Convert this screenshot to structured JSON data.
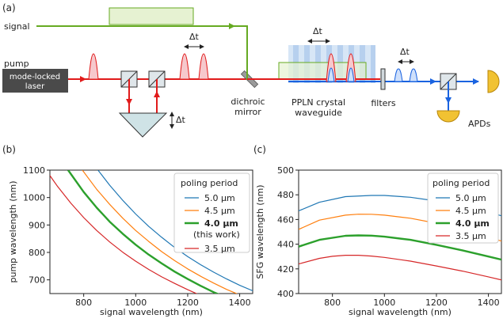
{
  "panel_a": {
    "label": "(a)",
    "signal_label": "signal",
    "pump_label": "pump",
    "laser_line1": "mode-locked",
    "laser_line2": "laser",
    "delay_symbol": "Δt",
    "dichroic_line1": "dichroic",
    "dichroic_line2": "mirror",
    "ppln_line1": "PPLN crystal",
    "ppln_line2": "waveguide",
    "filters_label": "filters",
    "apds_label": "APDs",
    "colors": {
      "signal": "#66aa22",
      "signal_fill": "#e6f2d2",
      "pump": "#e11b1b",
      "pump_fill": "#f6c8cc",
      "sfg": "#1a63e0",
      "sfg_fill": "#cfe0fb",
      "laser_box": "#4a4a4a",
      "apd": "#f1c232"
    }
  },
  "chart_data": [
    {
      "type": "line",
      "panel": "(b)",
      "xlabel": "signal wavelength (nm)",
      "ylabel": "pump wavelength (nm)",
      "xlim": [
        670,
        1450
      ],
      "ylim": [
        650,
        1100
      ],
      "xticks": [
        800,
        1000,
        1200,
        1400
      ],
      "yticks": [
        700,
        800,
        900,
        1000,
        1100
      ],
      "legend_title": "poling period",
      "legend_position": "top-right",
      "grid": false,
      "series": [
        {
          "name": "5.0 μm",
          "color": "#1f77b4",
          "bold": false,
          "x": [
            855,
            900,
            950,
            1000,
            1050,
            1100,
            1150,
            1200,
            1250,
            1300,
            1350,
            1400,
            1450
          ],
          "y": [
            1100,
            1045,
            990,
            940,
            895,
            855,
            818,
            785,
            755,
            728,
            703,
            680,
            660
          ]
        },
        {
          "name": "4.5 μm",
          "color": "#ff7f0e",
          "bold": false,
          "x": [
            795,
            850,
            900,
            950,
            1000,
            1050,
            1100,
            1150,
            1200,
            1250,
            1300,
            1350,
            1400,
            1450
          ],
          "y": [
            1100,
            1030,
            975,
            925,
            880,
            840,
            803,
            770,
            740,
            713,
            688,
            665,
            645,
            627
          ]
        },
        {
          "name": "4.0 μm",
          "note": "(this work)",
          "color": "#2ca02c",
          "bold": true,
          "x": [
            740,
            800,
            850,
            900,
            950,
            1000,
            1050,
            1100,
            1150,
            1200,
            1250,
            1300,
            1350
          ],
          "y": [
            1100,
            1020,
            963,
            912,
            868,
            828,
            792,
            760,
            730,
            703,
            678,
            655,
            635
          ]
        },
        {
          "name": "3.5 μm",
          "color": "#d62728",
          "bold": false,
          "x": [
            670,
            700,
            750,
            800,
            850,
            900,
            950,
            1000,
            1050,
            1100,
            1150,
            1200,
            1250
          ],
          "y": [
            1080,
            1040,
            980,
            927,
            880,
            838,
            801,
            768,
            738,
            711,
            687,
            664,
            643
          ]
        }
      ]
    },
    {
      "type": "line",
      "panel": "(c)",
      "xlabel": "signal wavelength (nm)",
      "ylabel": "SFG wavelength (nm)",
      "xlim": [
        670,
        1450
      ],
      "ylim": [
        400,
        500
      ],
      "xticks": [
        800,
        1000,
        1200,
        1400
      ],
      "yticks": [
        400,
        420,
        440,
        460,
        480,
        500
      ],
      "legend_title": "poling period",
      "legend_position": "top-right",
      "grid": false,
      "series": [
        {
          "name": "5.0 μm",
          "color": "#1f77b4",
          "bold": false,
          "x": [
            670,
            750,
            850,
            950,
            1000,
            1100,
            1200,
            1300,
            1400,
            1450
          ],
          "y": [
            467,
            474,
            478.5,
            479.5,
            479.5,
            478,
            475,
            471,
            466,
            463
          ]
        },
        {
          "name": "4.5 μm",
          "color": "#ff7f0e",
          "bold": false,
          "x": [
            670,
            750,
            850,
            900,
            950,
            1000,
            1100,
            1200,
            1300,
            1400,
            1450
          ],
          "y": [
            452,
            459.5,
            463.5,
            464.3,
            464.2,
            463.5,
            461,
            457,
            452,
            446,
            442.5
          ]
        },
        {
          "name": "4.0 μm",
          "color": "#2ca02c",
          "bold": true,
          "x": [
            670,
            750,
            850,
            900,
            950,
            1000,
            1100,
            1200,
            1300,
            1400,
            1450
          ],
          "y": [
            438,
            443.5,
            446.8,
            447.1,
            446.9,
            446.1,
            443.5,
            439.5,
            435,
            430,
            427.5
          ]
        },
        {
          "name": "3.5 μm",
          "color": "#d62728",
          "bold": false,
          "x": [
            670,
            750,
            800,
            850,
            900,
            950,
            1000,
            1100,
            1200,
            1300,
            1400,
            1450
          ],
          "y": [
            424,
            428.5,
            430.2,
            431,
            431,
            430.4,
            429.3,
            426.3,
            422.4,
            418.2,
            413.5,
            411
          ]
        }
      ]
    }
  ]
}
